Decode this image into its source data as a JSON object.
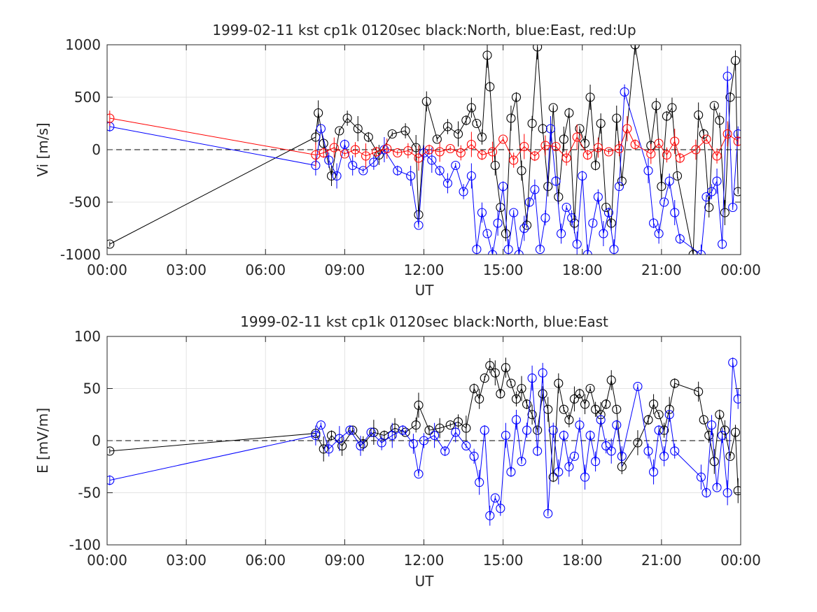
{
  "chart_data": [
    {
      "type": "scatter",
      "title": "1999-02-11 kst cp1k 0120sec black:North, blue:East, red:Up",
      "xlabel": "UT",
      "ylabel": "Vi [m/s]",
      "xlim": [
        0,
        24
      ],
      "ylim": [
        -1000,
        1000
      ],
      "xtick_labels": [
        "00:00",
        "03:00",
        "06:00",
        "09:00",
        "12:00",
        "15:00",
        "18:00",
        "21:00",
        "00:00"
      ],
      "ytick_labels": [
        "-1000",
        "-500",
        "0",
        "500",
        "1000"
      ],
      "xticks": [
        0,
        3,
        6,
        9,
        12,
        15,
        18,
        21,
        24
      ],
      "yticks": [
        -1000,
        -500,
        0,
        500,
        1000
      ],
      "grid": true,
      "zero_line": 0,
      "series": [
        {
          "name": "North",
          "color": "#000000",
          "x": [
            0.1,
            7.9,
            8.0,
            8.2,
            8.5,
            8.8,
            9.1,
            9.5,
            9.9,
            10.3,
            10.8,
            11.3,
            11.7,
            11.8,
            12.1,
            12.5,
            12.9,
            13.3,
            13.6,
            13.8,
            14.0,
            14.2,
            14.4,
            14.5,
            14.7,
            14.9,
            15.1,
            15.3,
            15.5,
            15.7,
            15.9,
            16.1,
            16.3,
            16.5,
            16.7,
            16.9,
            17.1,
            17.3,
            17.5,
            17.7,
            17.9,
            18.1,
            18.3,
            18.5,
            18.7,
            18.9,
            19.1,
            19.3,
            19.5,
            20.0,
            20.6,
            20.8,
            21.0,
            21.2,
            21.4,
            21.6,
            22.2,
            22.4,
            22.6,
            22.8,
            23.0,
            23.2,
            23.4,
            23.6,
            23.8,
            23.9
          ],
          "y": [
            -900,
            120,
            350,
            60,
            -250,
            180,
            300,
            200,
            120,
            -50,
            150,
            180,
            20,
            -620,
            460,
            100,
            220,
            150,
            280,
            400,
            250,
            120,
            900,
            600,
            -150,
            -550,
            -800,
            300,
            500,
            -200,
            -720,
            250,
            980,
            200,
            -350,
            400,
            -450,
            100,
            350,
            -700,
            200,
            60,
            500,
            -150,
            250,
            -550,
            -700,
            300,
            -300,
            1000,
            40,
            420,
            -350,
            320,
            400,
            -250,
            -1000,
            330,
            150,
            -550,
            420,
            280,
            -600,
            500,
            850,
            -400
          ]
        },
        {
          "name": "East",
          "color": "#0000ff",
          "x": [
            0.1,
            7.9,
            8.1,
            8.4,
            8.7,
            9.0,
            9.3,
            9.7,
            10.1,
            10.5,
            11.0,
            11.5,
            11.8,
            12.0,
            12.3,
            12.6,
            12.9,
            13.2,
            13.5,
            13.8,
            14.0,
            14.2,
            14.4,
            14.6,
            14.8,
            15.0,
            15.2,
            15.4,
            15.6,
            15.8,
            16.0,
            16.2,
            16.4,
            16.6,
            16.8,
            17.0,
            17.2,
            17.4,
            17.6,
            17.8,
            18.0,
            18.2,
            18.4,
            18.6,
            18.8,
            19.0,
            19.2,
            19.4,
            19.6,
            20.5,
            20.7,
            20.9,
            21.1,
            21.3,
            21.5,
            21.7,
            22.5,
            22.7,
            22.9,
            23.1,
            23.3,
            23.5,
            23.7,
            23.9
          ],
          "y": [
            220,
            -150,
            200,
            -100,
            -250,
            50,
            -150,
            -200,
            -120,
            0,
            -200,
            -250,
            -720,
            -30,
            -100,
            -200,
            -320,
            -150,
            -400,
            -250,
            -950,
            -600,
            -800,
            -1000,
            -700,
            -350,
            -950,
            -600,
            -1000,
            -750,
            -500,
            -380,
            -950,
            -650,
            200,
            -300,
            -800,
            -550,
            -650,
            -900,
            -250,
            -1000,
            -700,
            -450,
            -800,
            -600,
            -950,
            -350,
            550,
            -200,
            -700,
            -800,
            -500,
            -300,
            -600,
            -850,
            -1000,
            -450,
            -400,
            -300,
            -900,
            700,
            -550,
            150
          ]
        },
        {
          "name": "Up",
          "color": "#ff0000",
          "x": [
            0.1,
            7.9,
            8.2,
            8.6,
            9.0,
            9.4,
            9.8,
            10.2,
            10.6,
            11.0,
            11.4,
            11.8,
            12.2,
            12.6,
            13.0,
            13.4,
            13.8,
            14.2,
            14.6,
            15.0,
            15.4,
            15.8,
            16.2,
            16.6,
            17.0,
            17.4,
            17.8,
            18.2,
            18.6,
            19.0,
            19.4,
            19.7,
            20.0,
            20.6,
            20.9,
            21.2,
            21.5,
            21.7,
            22.3,
            22.7,
            23.1,
            23.5,
            23.9
          ],
          "y": [
            300,
            -50,
            -30,
            20,
            -40,
            0,
            -60,
            -20,
            10,
            -30,
            -10,
            -80,
            0,
            -20,
            10,
            -30,
            50,
            -50,
            -20,
            100,
            -100,
            30,
            -60,
            40,
            30,
            -80,
            120,
            -50,
            20,
            -20,
            10,
            200,
            50,
            -40,
            60,
            -50,
            80,
            -80,
            0,
            100,
            -60,
            150,
            80
          ]
        }
      ]
    },
    {
      "type": "scatter",
      "title": "1999-02-11 kst cp1k 0120sec black:North, blue:East",
      "xlabel": "UT",
      "ylabel": "E [mV/m]",
      "xlim": [
        0,
        24
      ],
      "ylim": [
        -100,
        100
      ],
      "xtick_labels": [
        "00:00",
        "03:00",
        "06:00",
        "09:00",
        "12:00",
        "15:00",
        "18:00",
        "21:00",
        "00:00"
      ],
      "ytick_labels": [
        "-100",
        "-50",
        "0",
        "50",
        "100"
      ],
      "xticks": [
        0,
        3,
        6,
        9,
        12,
        15,
        18,
        21,
        24
      ],
      "yticks": [
        -100,
        -50,
        0,
        50,
        100
      ],
      "grid": true,
      "zero_line": 0,
      "series": [
        {
          "name": "North",
          "color": "#000000",
          "x": [
            0.1,
            7.9,
            8.2,
            8.5,
            8.9,
            9.3,
            9.7,
            10.1,
            10.5,
            10.9,
            11.3,
            11.7,
            11.8,
            12.2,
            12.6,
            13.0,
            13.3,
            13.6,
            13.9,
            14.1,
            14.3,
            14.5,
            14.7,
            14.9,
            15.1,
            15.3,
            15.5,
            15.7,
            15.9,
            16.1,
            16.3,
            16.5,
            16.7,
            16.9,
            17.1,
            17.3,
            17.5,
            17.7,
            17.9,
            18.1,
            18.3,
            18.5,
            18.7,
            18.9,
            19.1,
            19.3,
            19.5,
            20.1,
            20.5,
            20.7,
            20.9,
            21.1,
            21.3,
            21.5,
            22.4,
            22.6,
            22.8,
            23.0,
            23.2,
            23.4,
            23.6,
            23.8,
            23.9
          ],
          "y": [
            -10,
            7,
            -8,
            5,
            -5,
            10,
            -3,
            8,
            5,
            12,
            8,
            15,
            34,
            10,
            12,
            15,
            18,
            12,
            50,
            40,
            60,
            72,
            65,
            45,
            70,
            55,
            40,
            50,
            35,
            25,
            10,
            45,
            30,
            -35,
            55,
            30,
            20,
            40,
            45,
            35,
            50,
            30,
            25,
            35,
            58,
            30,
            -25,
            -2,
            20,
            35,
            25,
            10,
            30,
            55,
            47,
            20,
            5,
            -20,
            25,
            10,
            -15,
            8,
            -48
          ]
        },
        {
          "name": "East",
          "color": "#0000ff",
          "x": [
            0.1,
            7.9,
            8.1,
            8.4,
            8.8,
            9.2,
            9.6,
            10.0,
            10.4,
            10.8,
            11.2,
            11.6,
            11.8,
            12.0,
            12.4,
            12.8,
            13.2,
            13.6,
            13.9,
            14.1,
            14.3,
            14.5,
            14.7,
            14.9,
            15.1,
            15.3,
            15.5,
            15.7,
            15.9,
            16.1,
            16.3,
            16.5,
            16.7,
            16.9,
            17.1,
            17.3,
            17.5,
            17.7,
            17.9,
            18.1,
            18.3,
            18.5,
            18.7,
            18.9,
            19.1,
            19.3,
            19.5,
            20.1,
            20.5,
            20.7,
            20.9,
            21.1,
            21.3,
            21.5,
            22.5,
            22.7,
            22.9,
            23.1,
            23.3,
            23.5,
            23.7,
            23.9
          ],
          "y": [
            -38,
            5,
            15,
            -8,
            2,
            10,
            -5,
            8,
            -2,
            5,
            10,
            -3,
            -32,
            0,
            5,
            -10,
            8,
            -5,
            -15,
            -40,
            10,
            -72,
            -55,
            -65,
            5,
            -30,
            20,
            -20,
            10,
            60,
            -10,
            65,
            -70,
            10,
            -30,
            5,
            -25,
            -15,
            15,
            -35,
            5,
            -20,
            20,
            -5,
            -10,
            15,
            -15,
            52,
            -10,
            -30,
            10,
            -15,
            25,
            -10,
            -35,
            -50,
            15,
            -45,
            5,
            -50,
            75,
            40
          ]
        }
      ]
    }
  ]
}
